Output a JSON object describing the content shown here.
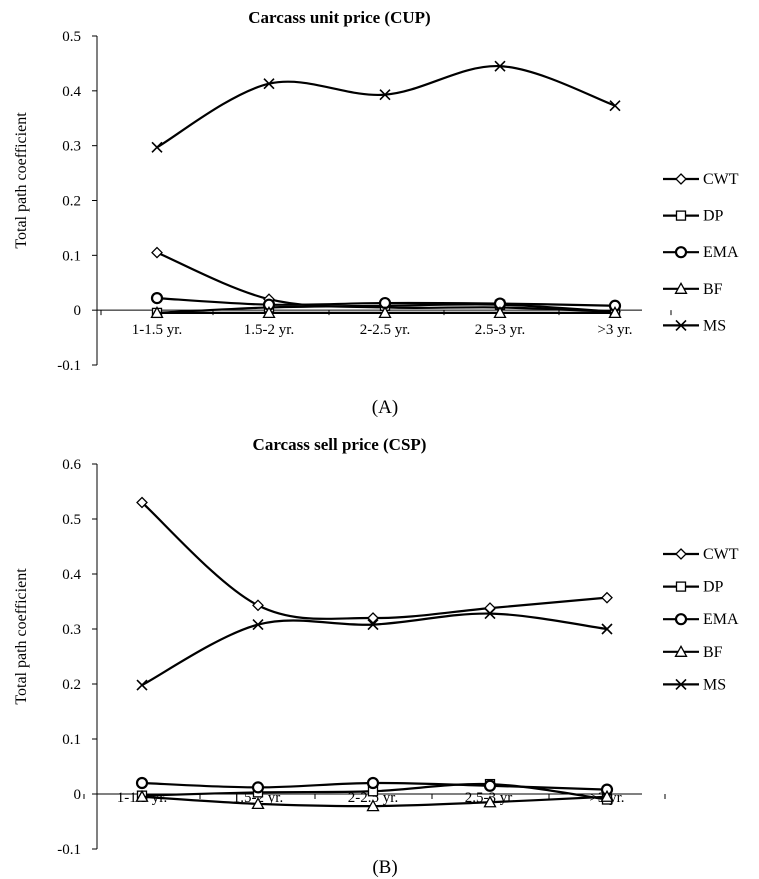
{
  "chart_data": [
    {
      "type": "line",
      "title": "Carcass unit price (CUP)",
      "ylabel": "Total path coefficient",
      "xlabel": "",
      "panel_label": "(A)",
      "categories": [
        "1-1.5 yr.",
        "1.5-2 yr.",
        "2-2.5 yr.",
        "2.5-3 yr.",
        ">3 yr."
      ],
      "ylim": [
        -0.1,
        0.5
      ],
      "yticks": [
        -0.1,
        0,
        0.1,
        0.2,
        0.3,
        0.4,
        0.5
      ],
      "ytick_labels": [
        "-0.1",
        "0",
        "0.1",
        "0.2",
        "0.3",
        "0.4",
        "0.5"
      ],
      "grid": false,
      "legend_position": "right",
      "series": [
        {
          "name": "CWT",
          "marker": "diamond",
          "values": [
            0.105,
            0.02,
            0.005,
            0.005,
            -0.003
          ]
        },
        {
          "name": "DP",
          "marker": "square",
          "values": [
            -0.005,
            0.005,
            0.008,
            0.01,
            -0.003
          ]
        },
        {
          "name": "EMA",
          "marker": "circle",
          "values": [
            0.022,
            0.01,
            0.013,
            0.012,
            0.008
          ]
        },
        {
          "name": "BF",
          "marker": "triangle",
          "values": [
            -0.005,
            -0.005,
            -0.005,
            -0.005,
            -0.005
          ]
        },
        {
          "name": "MS",
          "marker": "cross",
          "values": [
            0.297,
            0.413,
            0.393,
            0.445,
            0.373
          ]
        }
      ]
    },
    {
      "type": "line",
      "title": "Carcass sell price (CSP)",
      "ylabel": "Total path coefficient",
      "xlabel": "",
      "panel_label": "(B)",
      "categories": [
        "1-1.5 yr.",
        "1.5-2 yr.",
        "2-2.5 yr.",
        "2.5-3 yr.",
        ">3 yr."
      ],
      "ylim": [
        -0.1,
        0.6
      ],
      "yticks": [
        -0.1,
        0,
        0.1,
        0.2,
        0.3,
        0.4,
        0.5,
        0.6
      ],
      "ytick_labels": [
        "-0.1",
        "0",
        "0.1",
        "0.2",
        "0.3",
        "0.4",
        "0.5",
        "0.6"
      ],
      "grid": false,
      "legend_position": "right",
      "series": [
        {
          "name": "CWT",
          "marker": "diamond",
          "values": [
            0.53,
            0.343,
            0.32,
            0.338,
            0.357
          ]
        },
        {
          "name": "DP",
          "marker": "square",
          "values": [
            -0.003,
            0.003,
            0.005,
            0.018,
            -0.01
          ]
        },
        {
          "name": "EMA",
          "marker": "circle",
          "values": [
            0.02,
            0.012,
            0.02,
            0.015,
            0.008
          ]
        },
        {
          "name": "BF",
          "marker": "triangle",
          "values": [
            -0.005,
            -0.018,
            -0.022,
            -0.015,
            -0.005
          ]
        },
        {
          "name": "MS",
          "marker": "cross",
          "values": [
            0.198,
            0.308,
            0.308,
            0.328,
            0.3
          ]
        }
      ]
    }
  ]
}
